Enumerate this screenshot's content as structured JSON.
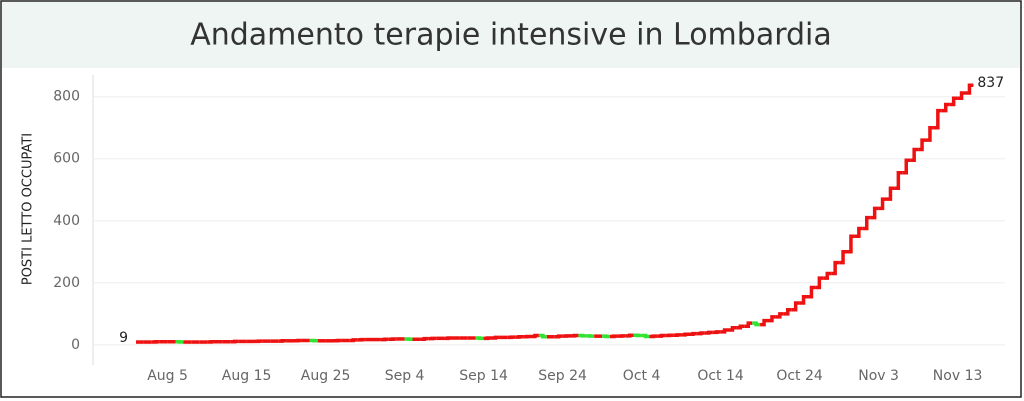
{
  "chart_data": {
    "type": "step-line",
    "title": "Andamento terapie intensive in Lombardia",
    "y_label": "POSTI LETTO OCCUPATI",
    "categories": [
      "Aug 1",
      "Aug 2",
      "Aug 3",
      "Aug 4",
      "Aug 5",
      "Aug 6",
      "Aug 7",
      "Aug 8",
      "Aug 9",
      "Aug 10",
      "Aug 11",
      "Aug 12",
      "Aug 13",
      "Aug 14",
      "Aug 15",
      "Aug 16",
      "Aug 17",
      "Aug 18",
      "Aug 19",
      "Aug 20",
      "Aug 21",
      "Aug 22",
      "Aug 23",
      "Aug 24",
      "Aug 25",
      "Aug 26",
      "Aug 27",
      "Aug 28",
      "Aug 29",
      "Aug 30",
      "Aug 31",
      "Sep 1",
      "Sep 2",
      "Sep 3",
      "Sep 4",
      "Sep 5",
      "Sep 6",
      "Sep 7",
      "Sep 8",
      "Sep 9",
      "Sep 10",
      "Sep 11",
      "Sep 12",
      "Sep 13",
      "Sep 14",
      "Sep 15",
      "Sep 16",
      "Sep 17",
      "Sep 18",
      "Sep 19",
      "Sep 20",
      "Sep 21",
      "Sep 22",
      "Sep 23",
      "Sep 24",
      "Sep 25",
      "Sep 26",
      "Sep 27",
      "Sep 28",
      "Sep 29",
      "Sep 30",
      "Oct 1",
      "Oct 2",
      "Oct 3",
      "Oct 4",
      "Oct 5",
      "Oct 6",
      "Oct 7",
      "Oct 8",
      "Oct 9",
      "Oct 10",
      "Oct 11",
      "Oct 12",
      "Oct 13",
      "Oct 14",
      "Oct 15",
      "Oct 16",
      "Oct 17",
      "Oct 18",
      "Oct 19",
      "Oct 20",
      "Oct 21",
      "Oct 22",
      "Oct 23",
      "Oct 24",
      "Oct 25",
      "Oct 26",
      "Oct 27",
      "Oct 28",
      "Oct 29",
      "Oct 30",
      "Oct 31",
      "Nov 1",
      "Nov 2",
      "Nov 3",
      "Nov 4",
      "Nov 5",
      "Nov 6",
      "Nov 7",
      "Nov 8",
      "Nov 9",
      "Nov 10",
      "Nov 11",
      "Nov 12",
      "Nov 13",
      "Nov 14",
      "Nov 15"
    ],
    "values": [
      9,
      9,
      9,
      10,
      10,
      10,
      9,
      9,
      9,
      9,
      10,
      10,
      10,
      11,
      11,
      11,
      12,
      12,
      12,
      13,
      13,
      14,
      14,
      13,
      13,
      13,
      14,
      14,
      16,
      17,
      17,
      17,
      18,
      19,
      19,
      18,
      18,
      20,
      21,
      21,
      22,
      22,
      22,
      22,
      21,
      22,
      24,
      24,
      25,
      26,
      27,
      30,
      26,
      26,
      28,
      29,
      30,
      29,
      28,
      28,
      27,
      28,
      29,
      31,
      30,
      27,
      28,
      30,
      31,
      32,
      34,
      36,
      38,
      40,
      42,
      48,
      55,
      60,
      70,
      65,
      78,
      90,
      100,
      113,
      135,
      155,
      185,
      215,
      230,
      265,
      300,
      350,
      375,
      410,
      440,
      470,
      505,
      555,
      595,
      630,
      660,
      700,
      755,
      775,
      795,
      812,
      837
    ],
    "increase_color": "#ee1111",
    "decrease_color": "#33e333",
    "ylim": [
      -65,
      870
    ],
    "yticks": [
      0,
      200,
      400,
      600,
      800
    ],
    "xticks": [
      "Aug 5",
      "Aug 15",
      "Aug 25",
      "Sep 4",
      "Sep 14",
      "Sep 24",
      "Oct 4",
      "Oct 14",
      "Oct 24",
      "Nov 3",
      "Nov 13"
    ],
    "grid": true
  }
}
